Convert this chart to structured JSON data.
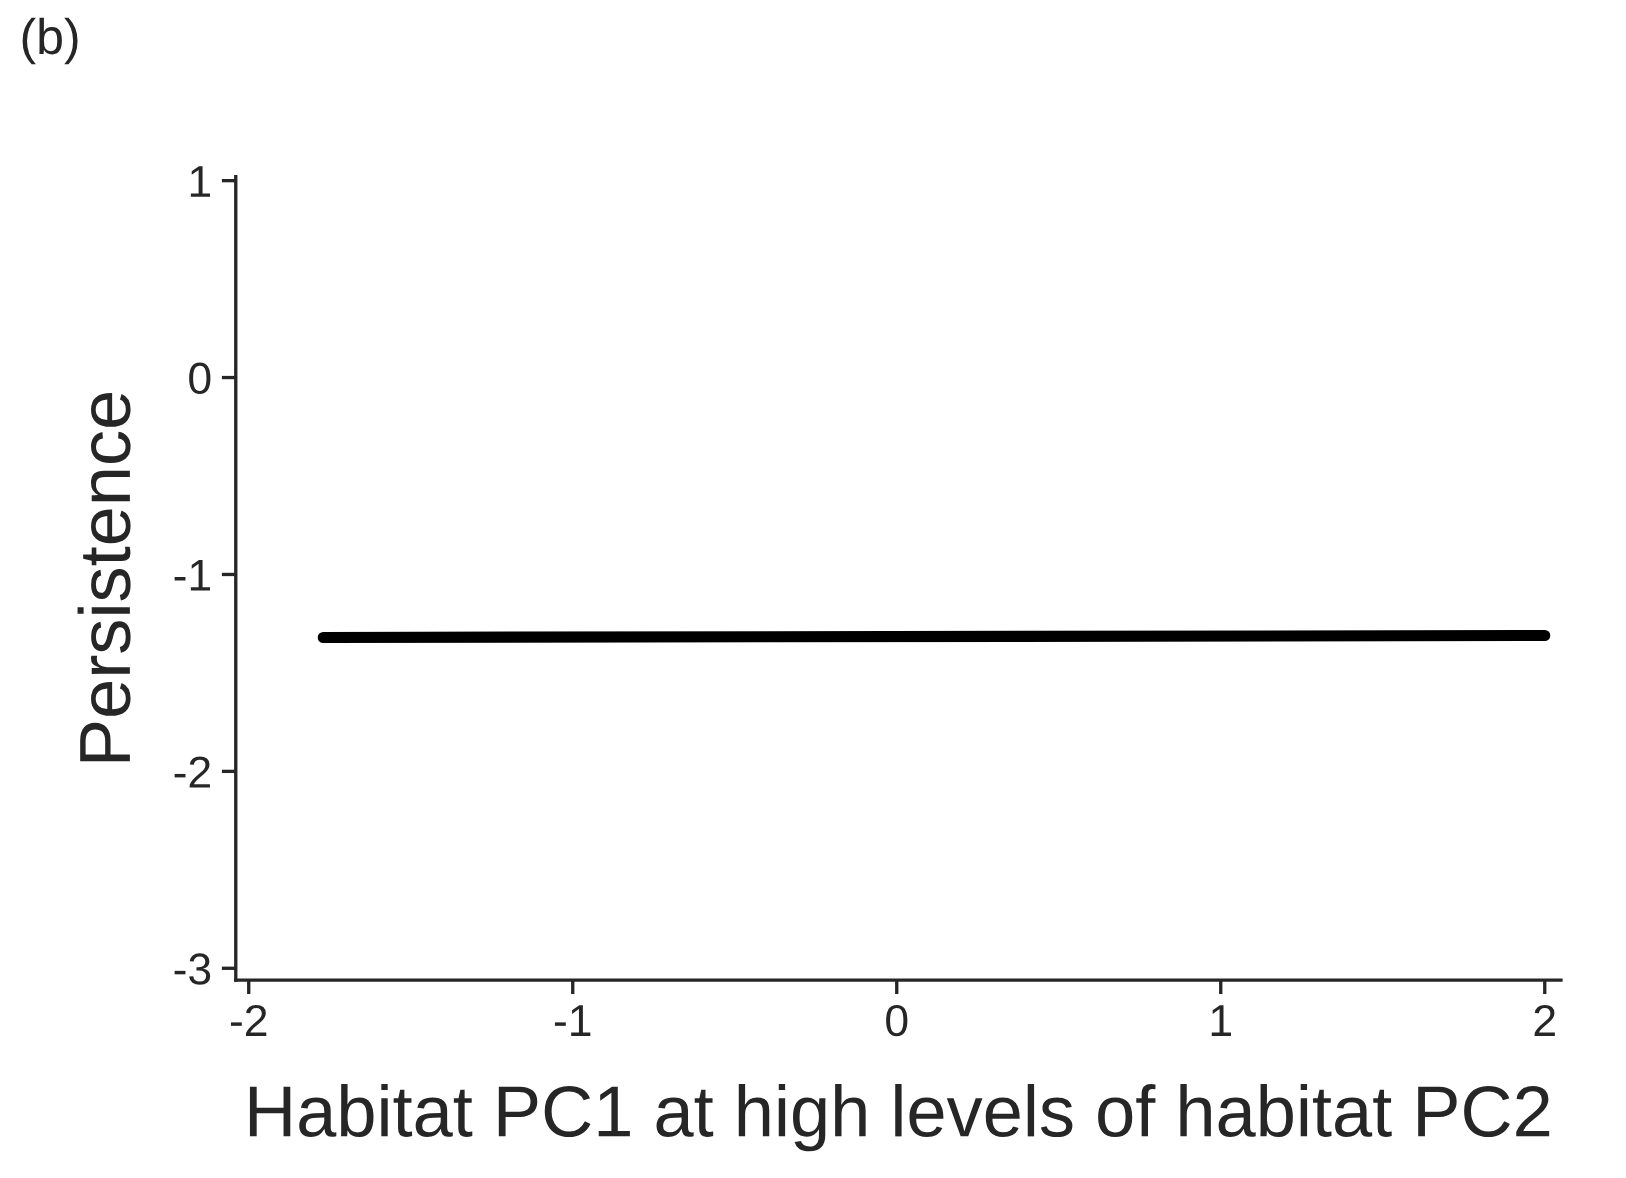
{
  "chart_data": {
    "type": "line",
    "xlabel": "Habitat PC1 at high levels of habitat PC2",
    "ylabel": "Persistence",
    "annotations": [
      "(b)"
    ],
    "series": [
      {
        "color": "#000000",
        "x": [
          -1.77,
          2.0
        ],
        "values": [
          -1.32,
          -1.31
        ]
      }
    ],
    "xlim": [
      -2.04,
      2.05
    ],
    "xticks": [
      -2,
      -1,
      0,
      1,
      2
    ],
    "ylim": [
      -3.06,
      1.02
    ],
    "yticks": [
      -3,
      -2,
      -1,
      0,
      1
    ],
    "grid": false,
    "legend": false,
    "marker": "none",
    "line_style": "solid"
  }
}
